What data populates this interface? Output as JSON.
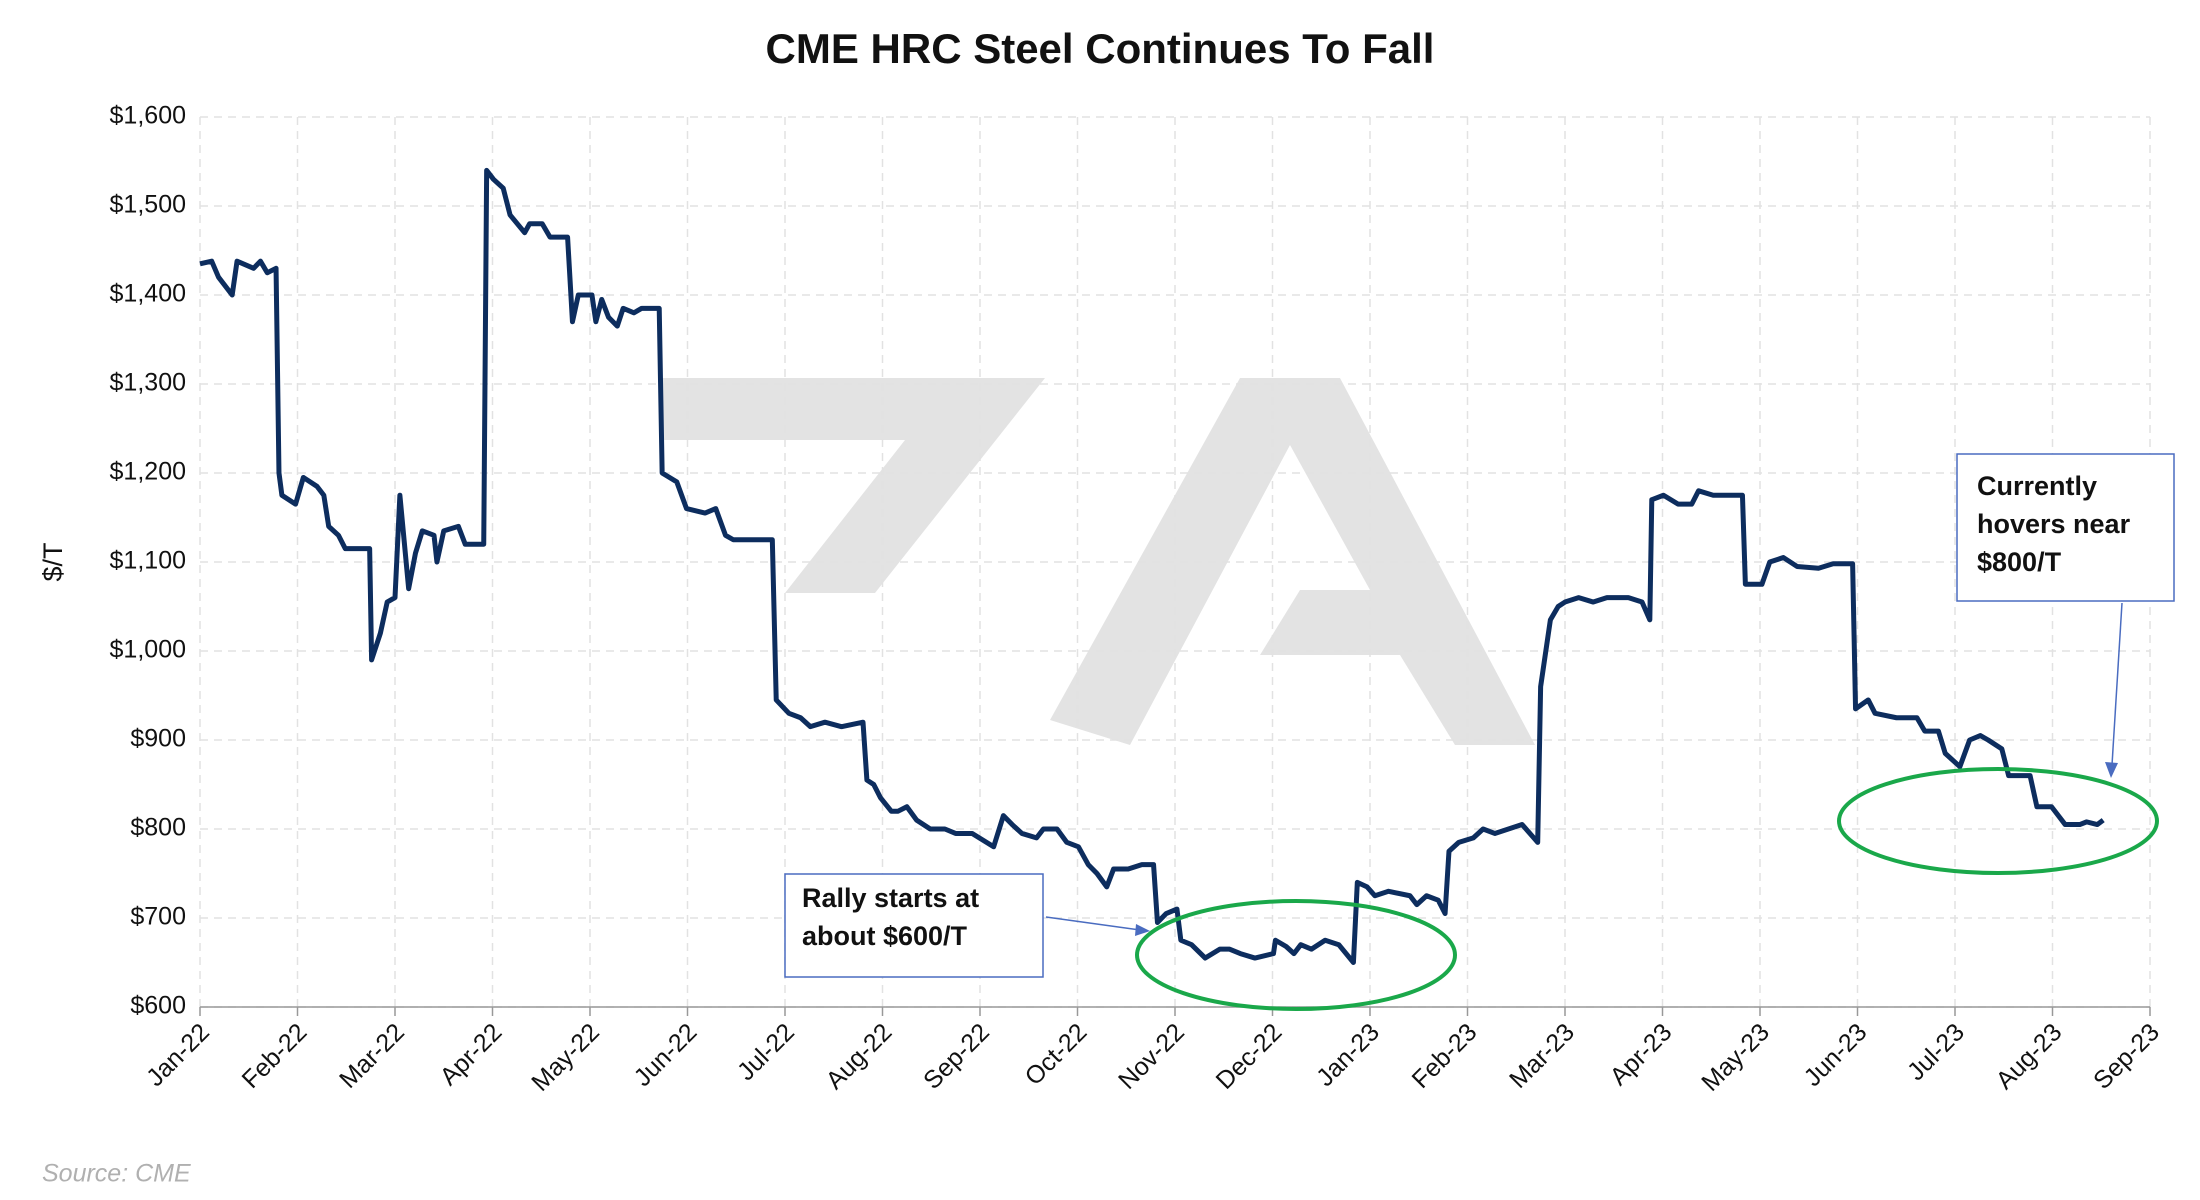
{
  "chart_data": {
    "type": "line",
    "title": "CME HRC Steel Continues To Fall",
    "ylabel": "$/T",
    "source": "Source: CME",
    "grid": true,
    "xlim": [
      0,
      20
    ],
    "xticks": [
      {
        "value": 0,
        "label": "Jan-22"
      },
      {
        "value": 1,
        "label": "Feb-22"
      },
      {
        "value": 2,
        "label": "Mar-22"
      },
      {
        "value": 3,
        "label": "Apr-22"
      },
      {
        "value": 4,
        "label": "May-22"
      },
      {
        "value": 5,
        "label": "Jun-22"
      },
      {
        "value": 6,
        "label": "Jul-22"
      },
      {
        "value": 7,
        "label": "Aug-22"
      },
      {
        "value": 8,
        "label": "Sep-22"
      },
      {
        "value": 9,
        "label": "Oct-22"
      },
      {
        "value": 10,
        "label": "Nov-22"
      },
      {
        "value": 11,
        "label": "Dec-22"
      },
      {
        "value": 12,
        "label": "Jan-23"
      },
      {
        "value": 13,
        "label": "Feb-23"
      },
      {
        "value": 14,
        "label": "Mar-23"
      },
      {
        "value": 15,
        "label": "Apr-23"
      },
      {
        "value": 16,
        "label": "May-23"
      },
      {
        "value": 17,
        "label": "Jun-23"
      },
      {
        "value": 18,
        "label": "Jul-23"
      },
      {
        "value": 19,
        "label": "Aug-23"
      },
      {
        "value": 20,
        "label": "Sep-23"
      }
    ],
    "ylim": [
      600,
      1600
    ],
    "yticks": [
      {
        "value": 600,
        "label": "$600"
      },
      {
        "value": 700,
        "label": "$700"
      },
      {
        "value": 800,
        "label": "$800"
      },
      {
        "value": 900,
        "label": "$900"
      },
      {
        "value": 1000,
        "label": "$1,000"
      },
      {
        "value": 1100,
        "label": "$1,100"
      },
      {
        "value": 1200,
        "label": "$1,200"
      },
      {
        "value": 1300,
        "label": "$1,300"
      },
      {
        "value": 1400,
        "label": "$1,400"
      },
      {
        "value": 1500,
        "label": "$1,500"
      },
      {
        "value": 1600,
        "label": "$1,600"
      }
    ],
    "x": [
      0,
      0.12,
      0.19,
      0.33,
      0.38,
      0.55,
      0.62,
      0.69,
      0.78,
      0.81,
      0.84,
      0.98,
      1.06,
      1.2,
      1.27,
      1.32,
      1.42,
      1.49,
      1.74,
      1.76,
      1.85,
      1.92,
      2.0,
      2.05,
      2.14,
      2.21,
      2.28,
      2.4,
      2.43,
      2.5,
      2.65,
      2.72,
      2.91,
      2.94,
      3.01,
      3.11,
      3.18,
      3.33,
      3.38,
      3.51,
      3.59,
      3.77,
      3.82,
      3.88,
      4.02,
      4.06,
      4.12,
      4.19,
      4.28,
      4.34,
      4.45,
      4.53,
      4.71,
      4.74,
      4.89,
      4.99,
      5.18,
      5.29,
      5.39,
      5.47,
      5.71,
      5.87,
      5.91,
      6.04,
      6.16,
      6.26,
      6.41,
      6.58,
      6.8,
      6.84,
      6.91,
      6.98,
      7.09,
      7.16,
      7.25,
      7.35,
      7.49,
      7.64,
      7.75,
      7.92,
      8.14,
      8.24,
      8.33,
      8.43,
      8.58,
      8.65,
      8.79,
      8.89,
      9.01,
      9.11,
      9.2,
      9.3,
      9.37,
      9.52,
      9.66,
      9.78,
      9.82,
      9.91,
      10.02,
      10.06,
      10.17,
      10.31,
      10.46,
      10.56,
      10.67,
      10.82,
      11.01,
      11.03,
      11.14,
      11.22,
      11.29,
      11.4,
      11.54,
      11.68,
      11.83,
      11.87,
      11.97,
      12.05,
      12.19,
      12.41,
      12.48,
      12.58,
      12.7,
      12.77,
      12.81,
      12.91,
      13.06,
      13.16,
      13.28,
      13.42,
      13.56,
      13.68,
      13.72,
      13.75,
      13.85,
      13.93,
      14.0,
      14.14,
      14.29,
      14.43,
      14.65,
      14.79,
      14.87,
      14.89,
      15.01,
      15.16,
      15.3,
      15.37,
      15.52,
      15.66,
      15.82,
      15.85,
      16.02,
      16.1,
      16.24,
      16.38,
      16.6,
      16.75,
      16.95,
      16.98,
      17.11,
      17.18,
      17.4,
      17.61,
      17.69,
      17.83,
      17.9,
      18.05,
      18.15,
      18.26,
      18.34,
      18.48,
      18.55,
      18.77,
      18.84,
      18.99,
      19.06,
      19.13,
      19.28,
      19.35,
      19.46,
      19.52
    ],
    "series": [
      {
        "name": "CME HRC Steel",
        "color": "#0d2d5e",
        "values": [
          1435,
          1438,
          1420,
          1400,
          1438,
          1430,
          1438,
          1425,
          1430,
          1200,
          1175,
          1165,
          1195,
          1185,
          1175,
          1140,
          1130,
          1115,
          1115,
          990,
          1020,
          1055,
          1060,
          1175,
          1070,
          1110,
          1135,
          1130,
          1100,
          1135,
          1140,
          1120,
          1120,
          1540,
          1530,
          1520,
          1490,
          1470,
          1480,
          1480,
          1465,
          1465,
          1370,
          1400,
          1400,
          1370,
          1395,
          1375,
          1365,
          1385,
          1380,
          1385,
          1385,
          1200,
          1190,
          1160,
          1155,
          1160,
          1130,
          1125,
          1125,
          1125,
          945,
          930,
          925,
          915,
          920,
          915,
          920,
          855,
          850,
          835,
          820,
          820,
          825,
          810,
          800,
          800,
          795,
          795,
          780,
          815,
          805,
          795,
          790,
          800,
          800,
          785,
          780,
          760,
          750,
          735,
          755,
          755,
          760,
          760,
          695,
          705,
          710,
          675,
          670,
          655,
          665,
          665,
          660,
          655,
          660,
          675,
          668,
          660,
          670,
          665,
          675,
          670,
          650,
          740,
          735,
          725,
          730,
          725,
          715,
          725,
          720,
          705,
          775,
          785,
          790,
          800,
          795,
          800,
          805,
          790,
          785,
          960,
          1035,
          1050,
          1055,
          1060,
          1055,
          1060,
          1060,
          1055,
          1035,
          1170,
          1175,
          1165,
          1165,
          1180,
          1175,
          1175,
          1175,
          1075,
          1075,
          1100,
          1105,
          1095,
          1093,
          1098,
          1098,
          935,
          945,
          930,
          925,
          925,
          910,
          910,
          885,
          870,
          900,
          905,
          900,
          890,
          860,
          860,
          825,
          825,
          815,
          805,
          805,
          808,
          805,
          810
        ]
      }
    ],
    "annotations": [
      {
        "lines": [
          "Rally starts at",
          "about $600/T"
        ]
      },
      {
        "lines": [
          "Currently",
          "hovers near",
          "$800/T"
        ]
      }
    ]
  }
}
